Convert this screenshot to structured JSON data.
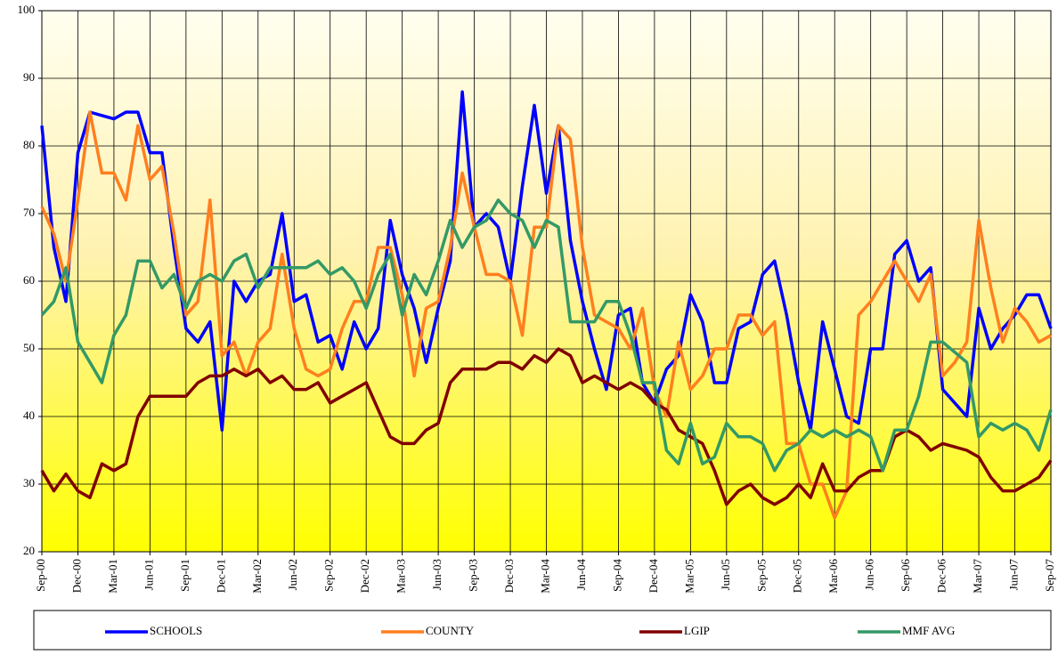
{
  "chart_data": {
    "type": "line",
    "categories": [
      "Sep-00",
      null,
      null,
      "Dec-00",
      null,
      null,
      "Mar-01",
      null,
      null,
      "Jun-01",
      null,
      null,
      "Sep-01",
      null,
      null,
      "Dec-01",
      null,
      null,
      "Mar-02",
      null,
      null,
      "Jun-02",
      null,
      null,
      "Sep-02",
      null,
      null,
      "Dec-02",
      null,
      null,
      "Mar-03",
      null,
      null,
      "Jun-03",
      null,
      null,
      "Sep-03",
      null,
      null,
      "Dec-03",
      null,
      null,
      "Mar-04",
      null,
      null,
      "Jun-04",
      null,
      null,
      "Sep-04",
      null,
      null,
      "Dec-04",
      null,
      null,
      "Mar-05",
      null,
      null,
      "Jun-05",
      null,
      null,
      "Sep-05",
      null,
      null,
      "Dec-05",
      null,
      null,
      "Mar-06",
      null,
      null,
      "Jun-06",
      null,
      null,
      "Sep-06",
      null,
      null,
      "Dec-06",
      null,
      null,
      "Mar-07",
      null,
      null,
      "Jun-07",
      null,
      null,
      "Sep-07"
    ],
    "series": [
      {
        "name": "SCHOOLS",
        "color": "#0000ff",
        "values": [
          83,
          65,
          57,
          79,
          85,
          84.5,
          84,
          85,
          85,
          79,
          79,
          65,
          53,
          51,
          54,
          38,
          60,
          57,
          60,
          61,
          70,
          57,
          58,
          51,
          52,
          47,
          54,
          50,
          53,
          69,
          61,
          56,
          48,
          56,
          63,
          88,
          68,
          70,
          68,
          60,
          74,
          86,
          73,
          83,
          66,
          57,
          50,
          44,
          55,
          56,
          45,
          42,
          47,
          49,
          58,
          54,
          45,
          45,
          53,
          54,
          61,
          63,
          55,
          45,
          38,
          54,
          47,
          40,
          39,
          50,
          50,
          64,
          66,
          60,
          62,
          44,
          42,
          40,
          56,
          50,
          53,
          55,
          58,
          58,
          53
        ]
      },
      {
        "name": "COUNTY",
        "color": "#ff7f1e",
        "values": [
          71,
          67,
          60,
          72,
          85,
          76,
          76,
          72,
          83,
          75,
          77,
          67,
          55,
          57,
          72,
          49,
          51,
          46,
          51,
          53,
          64,
          53,
          47,
          46,
          47,
          53,
          57,
          57,
          65,
          65,
          58,
          46,
          56,
          57,
          65,
          76,
          68,
          61,
          61,
          60,
          52,
          68,
          68,
          83,
          81,
          65,
          55,
          54,
          53,
          50,
          56,
          44,
          40,
          51,
          44,
          46,
          50,
          50,
          55,
          55,
          52,
          54,
          36,
          36,
          30,
          30,
          25,
          29,
          55,
          57,
          60,
          63,
          60,
          57,
          61,
          46,
          48,
          51,
          69,
          59,
          51,
          56,
          54,
          51,
          52
        ]
      },
      {
        "name": "LGIP",
        "color": "#800000",
        "values": [
          32,
          29,
          31.5,
          29,
          28,
          33,
          32,
          33,
          40,
          43,
          43,
          43,
          43,
          45,
          46,
          46,
          47,
          46,
          47,
          45,
          46,
          44,
          44,
          45,
          42,
          43,
          44,
          45,
          41,
          37,
          36,
          36,
          38,
          39,
          45,
          47,
          47,
          47,
          48,
          48,
          47,
          49,
          48,
          50,
          49,
          45,
          46,
          45,
          44,
          45,
          44,
          42,
          41,
          38,
          37,
          36,
          32,
          27,
          29,
          30,
          28,
          27,
          28,
          30,
          28,
          33,
          29,
          29,
          31,
          32,
          32,
          37,
          38,
          37,
          35,
          36,
          35.5,
          35,
          34,
          31,
          29,
          29,
          30,
          31,
          33.5
        ]
      },
      {
        "name": "MMF AVG",
        "color": "#339966",
        "values": [
          55,
          57,
          62,
          51,
          48,
          45,
          52,
          55,
          63,
          63,
          59,
          61,
          56,
          60,
          61,
          60,
          63,
          64,
          59,
          62,
          62,
          62,
          62,
          63,
          61,
          62,
          60,
          56,
          61,
          64,
          55,
          61,
          58,
          63,
          69,
          65,
          68,
          69,
          72,
          70,
          69,
          65,
          69,
          68,
          54,
          54,
          54,
          57,
          57,
          52,
          45,
          45,
          35,
          33,
          39,
          33,
          34,
          39,
          37,
          37,
          36,
          32,
          35,
          36,
          38,
          37,
          38,
          37,
          38,
          37,
          32,
          38,
          38,
          43,
          51,
          51,
          49.5,
          48,
          37,
          39,
          38,
          39,
          38,
          35,
          41
        ]
      }
    ],
    "ylim": [
      20,
      100
    ],
    "yticks": [
      20,
      30,
      40,
      50,
      60,
      70,
      80,
      90,
      100
    ],
    "grid": true
  }
}
